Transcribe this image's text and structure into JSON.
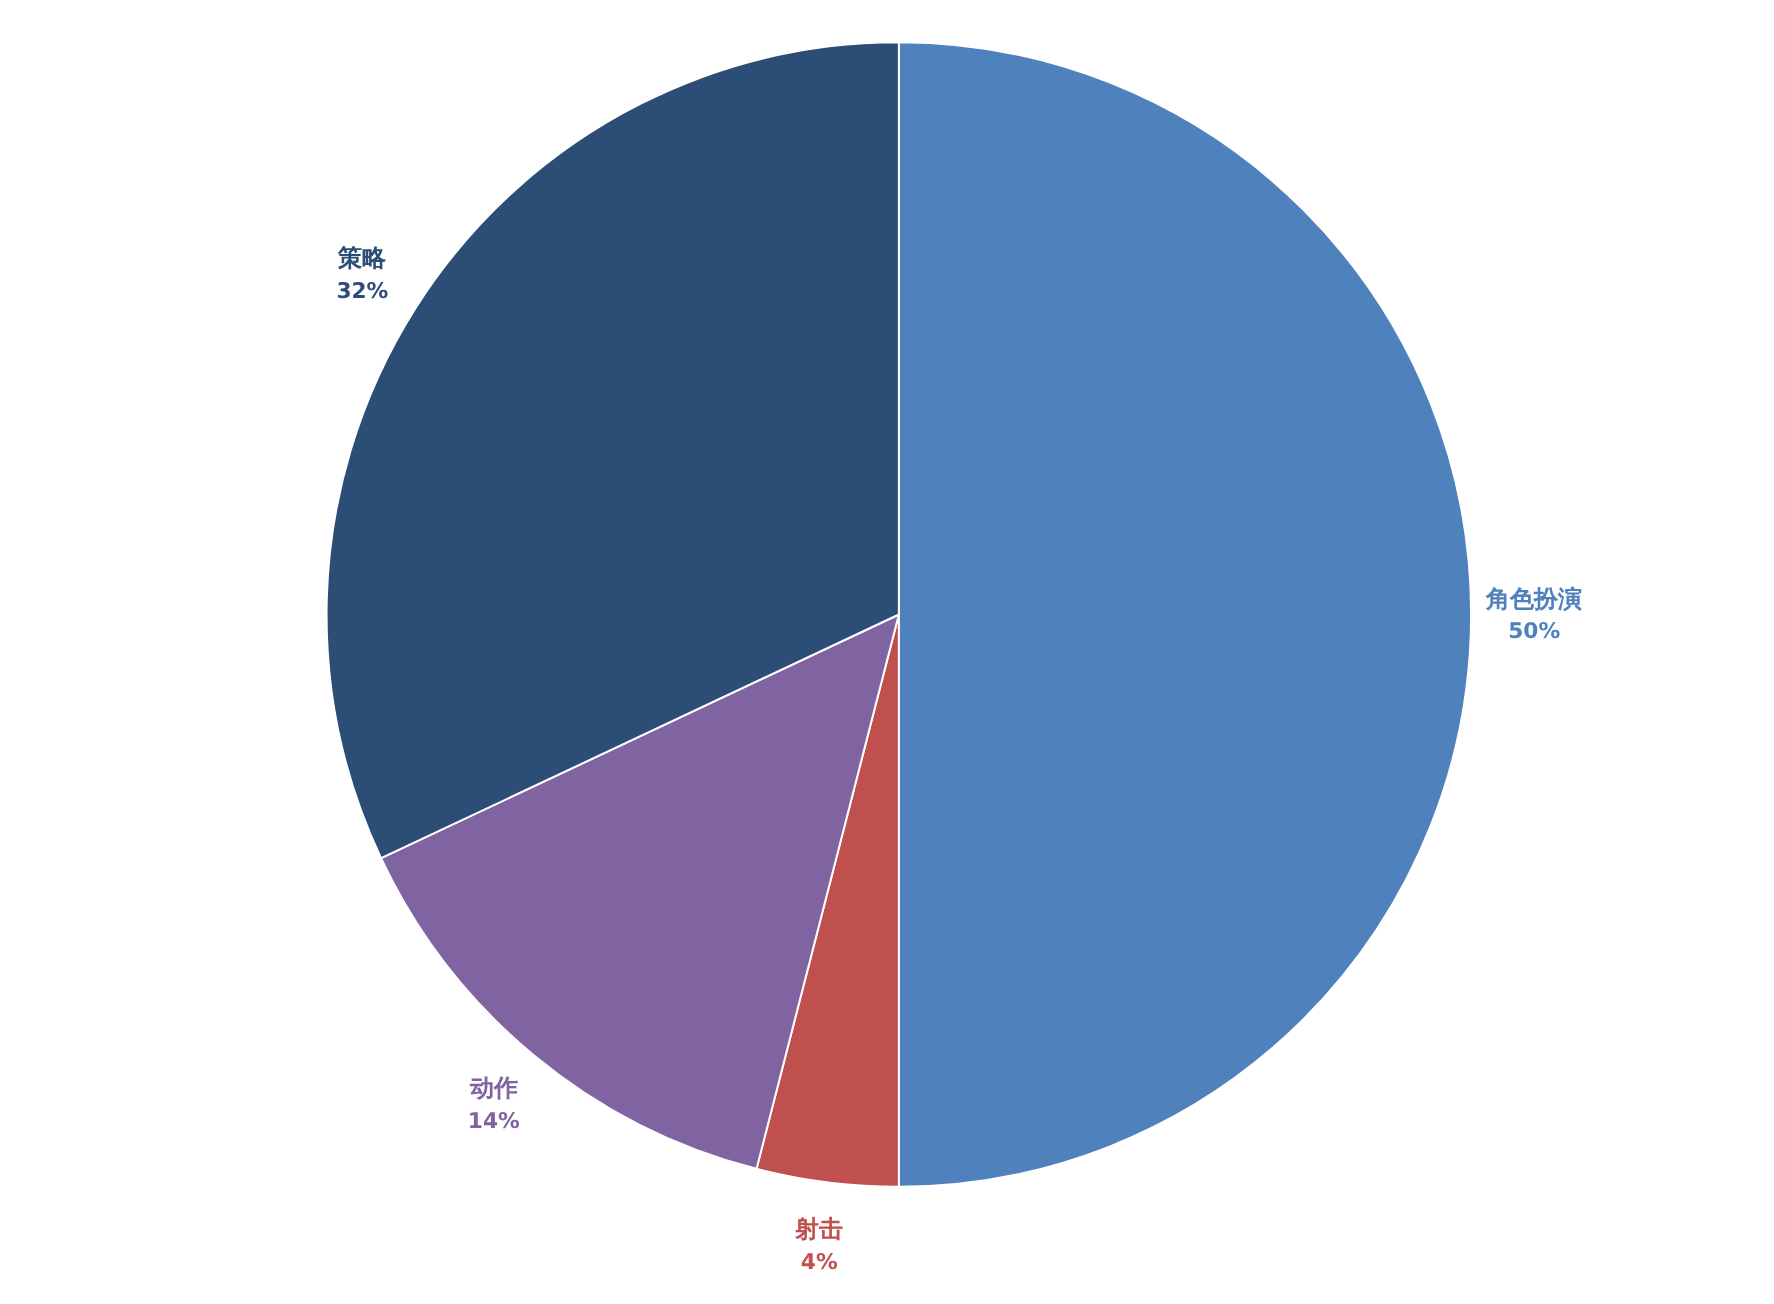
{
  "chart_data": {
    "type": "pie",
    "categories": [
      "角色扮演",
      "射击",
      "动作",
      "策略"
    ],
    "values": [
      50,
      4,
      14,
      32
    ],
    "colors": [
      "#4f81bd",
      "#c0504d",
      "#8064a2",
      "#2c4d75"
    ],
    "value_labels": [
      "50%",
      "4%",
      "14%",
      "32%"
    ]
  }
}
